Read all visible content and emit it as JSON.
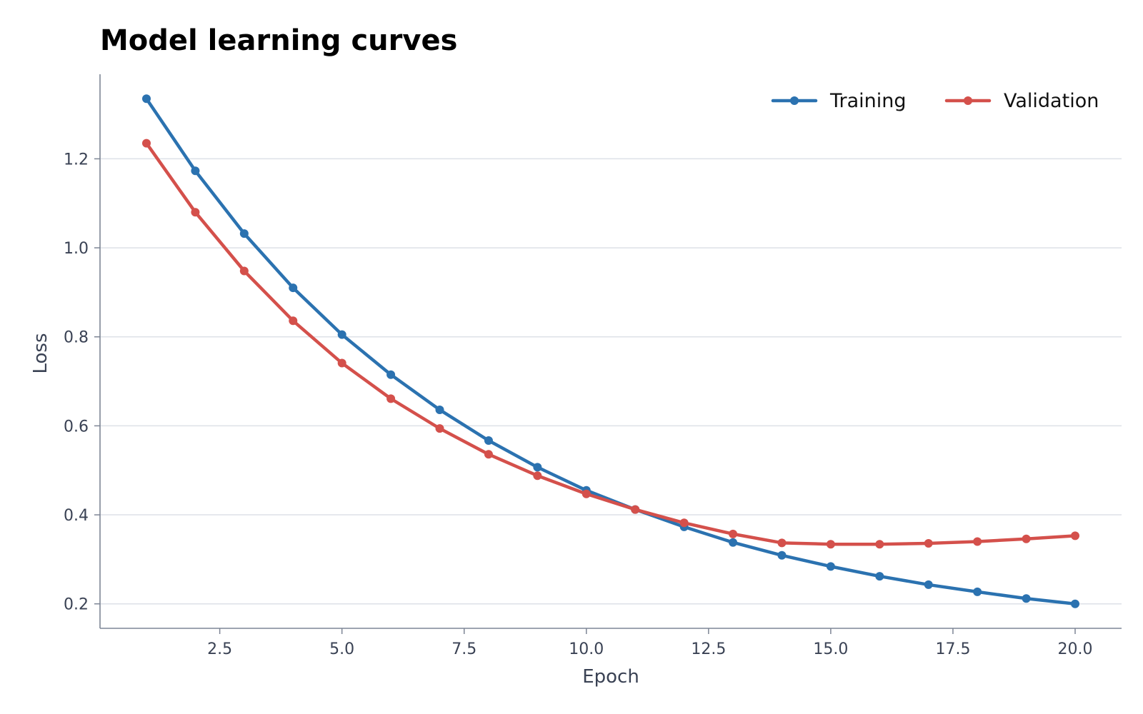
{
  "chart_data": {
    "type": "line",
    "title": "Model learning curves",
    "xlabel": "Epoch",
    "ylabel": "Loss",
    "xlim": [
      0.05,
      20.95
    ],
    "ylim": [
      0.145,
      1.39
    ],
    "xticks": [
      2.5,
      5.0,
      7.5,
      10.0,
      12.5,
      15.0,
      17.5,
      20.0
    ],
    "xtick_labels": [
      "2.5",
      "5.0",
      "7.5",
      "10.0",
      "12.5",
      "15.0",
      "17.5",
      "20.0"
    ],
    "yticks": [
      0.2,
      0.4,
      0.6,
      0.8,
      1.0,
      1.2
    ],
    "ytick_labels": [
      "0.2",
      "0.4",
      "0.6",
      "0.8",
      "1.0",
      "1.2"
    ],
    "grid": "horizontal",
    "legend_position": "top-right",
    "x": [
      1,
      2,
      3,
      4,
      5,
      6,
      7,
      8,
      9,
      10,
      11,
      12,
      13,
      14,
      15,
      16,
      17,
      18,
      19,
      20
    ],
    "series": [
      {
        "name": "Training",
        "color": "#2b72b0",
        "values": [
          1.335,
          1.173,
          1.032,
          0.91,
          0.805,
          0.715,
          0.636,
          0.567,
          0.507,
          0.455,
          0.412,
          0.373,
          0.338,
          0.309,
          0.284,
          0.262,
          0.243,
          0.227,
          0.212,
          0.2
        ]
      },
      {
        "name": "Validation",
        "color": "#d4504b",
        "values": [
          1.235,
          1.08,
          0.948,
          0.836,
          0.741,
          0.661,
          0.594,
          0.536,
          0.488,
          0.447,
          0.412,
          0.382,
          0.357,
          0.337,
          0.334,
          0.334,
          0.336,
          0.34,
          0.346,
          0.353
        ]
      }
    ],
    "colors": {
      "grid": "#dde1e7",
      "axis": "#7d8595",
      "text": "#3a4254"
    }
  }
}
